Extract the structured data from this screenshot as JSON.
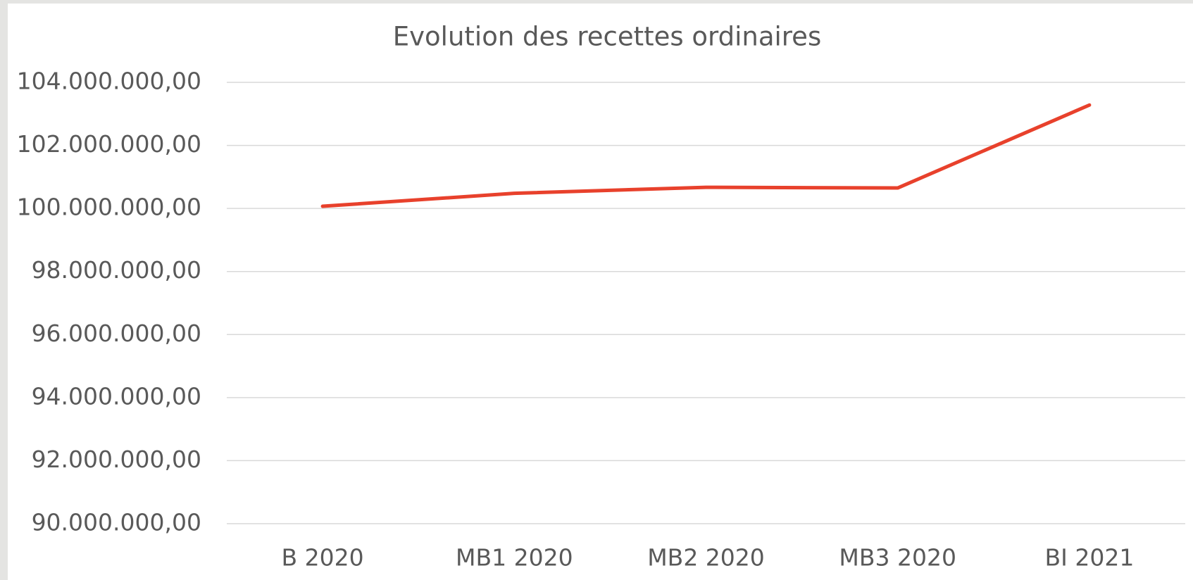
{
  "chart_data": {
    "type": "line",
    "title": "Evolution des recettes ordinaires",
    "categories": [
      "B 2020",
      "MB1 2020",
      "MB2 2020",
      "MB3 2020",
      "BI 2021"
    ],
    "series": [
      {
        "name": "Recettes ordinaires",
        "color": "#e8412c",
        "values": [
          100070000,
          100480000,
          100670000,
          100650000,
          103280000
        ]
      }
    ],
    "ylim": [
      90000000,
      104000000
    ],
    "yticks": [
      {
        "value": 90000000,
        "label": "90.000.000,00"
      },
      {
        "value": 92000000,
        "label": "92.000.000,00"
      },
      {
        "value": 94000000,
        "label": "94.000.000,00"
      },
      {
        "value": 96000000,
        "label": "96.000.000,00"
      },
      {
        "value": 98000000,
        "label": "98.000.000,00"
      },
      {
        "value": 100000000,
        "label": "100.000.000,00"
      },
      {
        "value": 102000000,
        "label": "102.000.000,00"
      },
      {
        "value": 104000000,
        "label": "104.000.000,00"
      }
    ],
    "grid": true,
    "legend": false
  }
}
